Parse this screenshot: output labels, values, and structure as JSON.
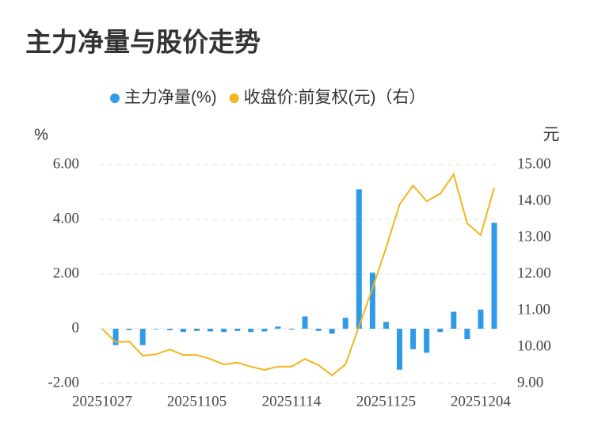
{
  "chart_data": {
    "type": "bar-line",
    "title": "主力净量与股价走势",
    "y_unit": "%",
    "y2_unit": "元",
    "categories": [
      "20251027",
      null,
      null,
      null,
      null,
      null,
      null,
      "20251105",
      null,
      null,
      null,
      null,
      null,
      null,
      "20251114",
      null,
      null,
      null,
      null,
      null,
      null,
      "20251125",
      null,
      null,
      null,
      null,
      null,
      null,
      "20251204",
      null
    ],
    "series": [
      {
        "name": "主力净量(%)",
        "type": "bar",
        "color": "#2f9be8",
        "values": [
          0,
          -0.6,
          -0.05,
          -0.6,
          -0.02,
          -0.05,
          -0.12,
          -0.08,
          -0.1,
          -0.12,
          -0.08,
          -0.12,
          -0.1,
          0.08,
          -0.03,
          0.45,
          -0.08,
          -0.18,
          0.4,
          5.1,
          2.05,
          0.25,
          -1.5,
          -0.75,
          -0.88,
          -0.12,
          0.62,
          -0.38,
          0.7,
          3.88
        ]
      },
      {
        "name": "收盘价:前复权(元)（右）",
        "type": "line",
        "axis": "y2",
        "color": "#f2b51c",
        "values": [
          10.5,
          10.13,
          10.15,
          9.76,
          9.8,
          9.93,
          9.78,
          9.78,
          9.67,
          9.52,
          9.57,
          9.46,
          9.37,
          9.46,
          9.46,
          9.67,
          9.5,
          9.22,
          9.52,
          10.57,
          11.61,
          12.72,
          13.91,
          14.43,
          14,
          14.2,
          14.74,
          13.39,
          13.07,
          14.37
        ]
      }
    ],
    "ylim": [
      -2,
      6
    ],
    "yticks": [
      {
        "value": -2,
        "label": "-2.00"
      },
      0,
      {
        "value": 2,
        "label": "2.00"
      },
      {
        "value": 4,
        "label": "4.00"
      },
      {
        "value": 6,
        "label": "6.00"
      }
    ],
    "y2lim": [
      9,
      15
    ],
    "y2ticks": [
      {
        "value": 9,
        "label": "9.00"
      },
      {
        "value": 10,
        "label": "10.00"
      },
      {
        "value": 11,
        "label": "11.00"
      },
      {
        "value": 12,
        "label": "12.00"
      },
      {
        "value": 13,
        "label": "13.00"
      },
      {
        "value": 14,
        "label": "14.00"
      },
      {
        "value": 15,
        "label": "15.00"
      }
    ],
    "grid": true
  }
}
